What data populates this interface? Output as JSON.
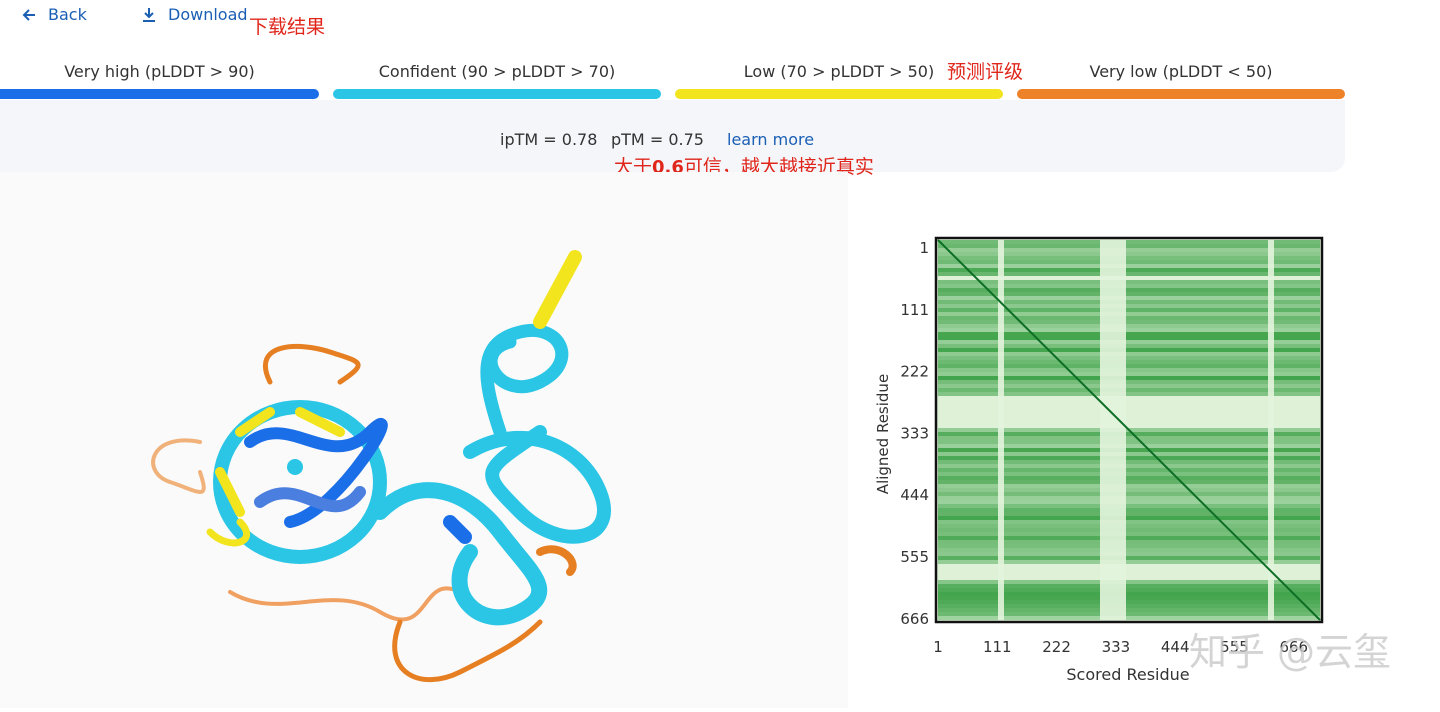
{
  "toolbar": {
    "back": "Back",
    "download": "Download"
  },
  "annotations": {
    "download_note": "下载结果",
    "legend_note": "预测评级",
    "score_note_prefix": "大于",
    "score_note_bold": "0.6",
    "score_note_suffix": "可信，越大越接近真实"
  },
  "legend": [
    {
      "label": "Very high (pLDDT > 90)",
      "color": "#1a6ee8"
    },
    {
      "label": "Confident (90 > pLDDT > 70)",
      "color": "#2bc6e6"
    },
    {
      "label": "Low (70 > pLDDT > 50)",
      "color": "#f2e41d"
    },
    {
      "label": "Very low (pLDDT < 50)",
      "color": "#ee8228"
    }
  ],
  "scores": {
    "iptm": "ipTM = 0.78",
    "ptm": "pTM = 0.75",
    "learn_more": "learn more"
  },
  "pae": {
    "y_label": "Aligned Residue",
    "x_label": "Scored Residue",
    "yticks": [
      "1",
      "111",
      "222",
      "333",
      "444",
      "555",
      "666"
    ],
    "xticks": [
      "1",
      "111",
      "222",
      "333",
      "444",
      "555",
      "666"
    ]
  },
  "watermark": "知乎 @云玺"
}
